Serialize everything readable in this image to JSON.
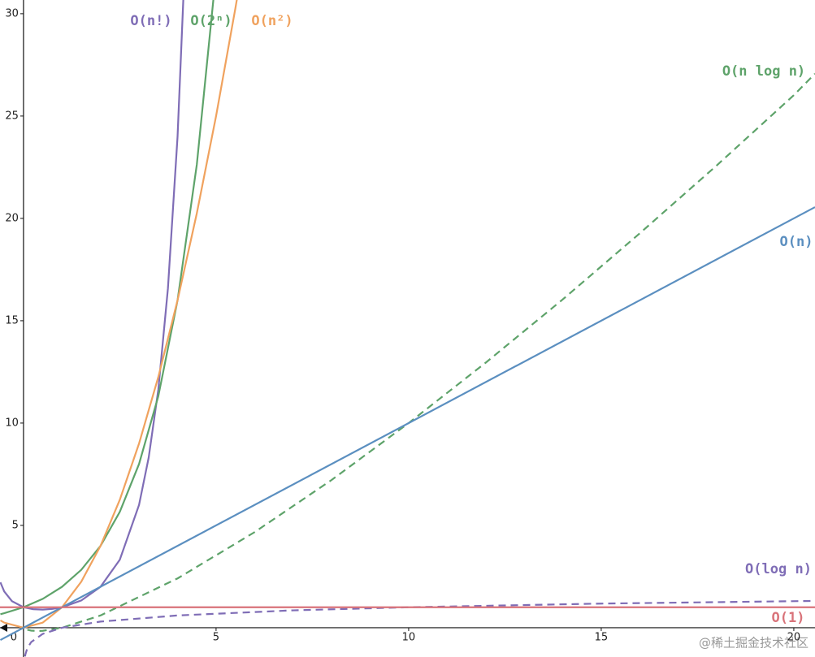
{
  "chart_data": {
    "type": "line",
    "xlim": [
      -0.61,
      20.55
    ],
    "ylim": [
      -1.43,
      30.67
    ],
    "xticks": [
      0,
      5,
      10,
      15,
      20
    ],
    "yticks": [
      5,
      10,
      15,
      20,
      25,
      30
    ],
    "grid": false,
    "series": [
      {
        "name": "O(n!)",
        "color": "#7f6db6",
        "dashed": false,
        "x": [
          -0.6,
          -0.5,
          -0.3,
          0,
          0.25,
          0.5,
          0.75,
          1,
          1.5,
          2,
          2.5,
          3,
          3.25,
          3.5,
          3.75,
          4,
          4.25
        ],
        "values": [
          2.22,
          1.77,
          1.3,
          1,
          0.906,
          0.886,
          0.919,
          1,
          1.33,
          2,
          3.32,
          6,
          8.31,
          11.63,
          16.58,
          24,
          35.2
        ]
      },
      {
        "name": "O(2ⁿ)",
        "color": "#5ea36a",
        "dashed": false,
        "x": [
          -0.6,
          -0.5,
          0,
          0.5,
          1,
          1.5,
          2,
          2.5,
          3,
          3.5,
          4,
          4.5,
          5
        ],
        "values": [
          0.66,
          0.71,
          1,
          1.41,
          2,
          2.83,
          4,
          5.66,
          8,
          11.31,
          16,
          22.63,
          32
        ]
      },
      {
        "name": "O(n²)",
        "color": "#f0a25e",
        "dashed": false,
        "x": [
          -0.6,
          -0.5,
          0,
          0.5,
          1,
          1.5,
          2,
          2.5,
          3,
          3.5,
          4,
          4.5,
          5,
          5.5,
          5.7
        ],
        "values": [
          0.36,
          0.25,
          0,
          0.25,
          1,
          2.25,
          4,
          6.25,
          9,
          12.25,
          16,
          20.25,
          25,
          30.25,
          32.49
        ]
      },
      {
        "name": "O(n log n)",
        "color": "#5ea36a",
        "dashed": true,
        "x": [
          0.1,
          0.2,
          0.37,
          0.5,
          1,
          2,
          4,
          6,
          8,
          10,
          12,
          14,
          16,
          18,
          20,
          20.55
        ],
        "values": [
          -0.1,
          -0.14,
          -0.16,
          -0.15,
          0,
          0.6,
          2.41,
          4.67,
          7.22,
          10,
          12.95,
          16.04,
          19.27,
          22.59,
          26.02,
          27.07
        ]
      },
      {
        "name": "O(n)",
        "color": "#5b8fc0",
        "dashed": false,
        "x": [
          -0.6,
          20.55
        ],
        "values": [
          -0.6,
          20.55
        ]
      },
      {
        "name": "O(log n)",
        "color": "#7f6db6",
        "dashed": true,
        "x": [
          0.04,
          0.05,
          0.1,
          0.2,
          0.5,
          1,
          2,
          4,
          7,
          10,
          15,
          20.55
        ],
        "values": [
          -1.4,
          -1.3,
          -1,
          -0.7,
          -0.3,
          0,
          0.3,
          0.6,
          0.85,
          1,
          1.18,
          1.31
        ]
      },
      {
        "name": "O(1)",
        "color": "#d9737a",
        "dashed": false,
        "x": [
          -0.61,
          20.55
        ],
        "values": [
          1,
          1
        ]
      }
    ],
    "watermark": "@稀土掘金技术社区"
  }
}
